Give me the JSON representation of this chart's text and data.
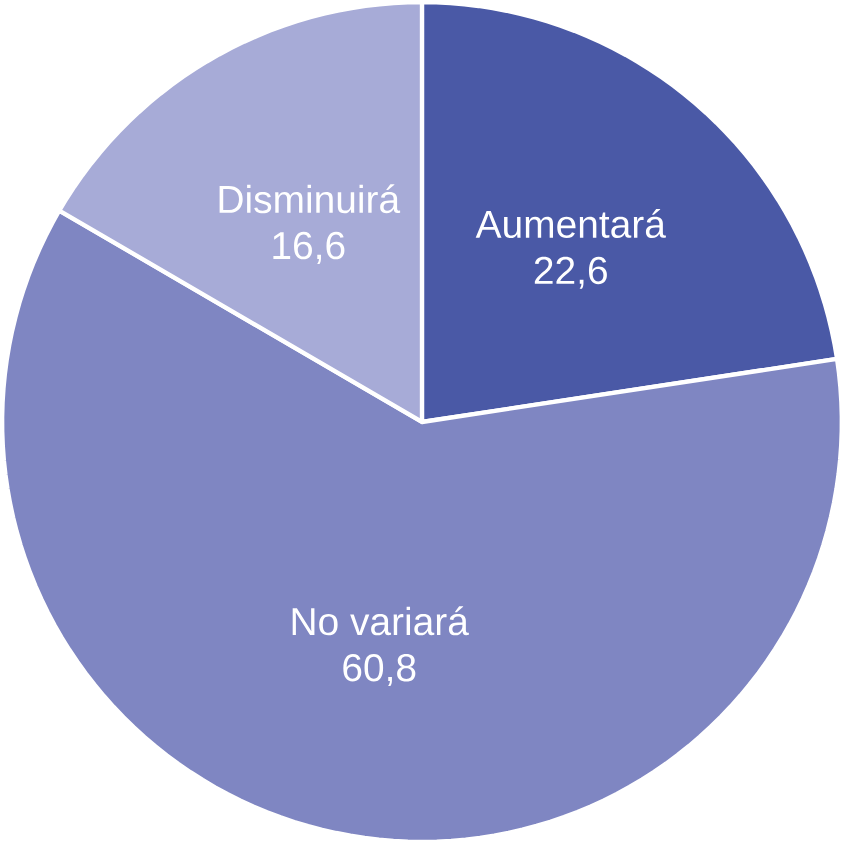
{
  "chart_data": {
    "type": "pie",
    "categories": [
      "Aumentará",
      "No variará",
      "Disminuirá"
    ],
    "values": [
      22.6,
      60.8,
      16.6
    ],
    "value_labels": [
      "22,6",
      "60,8",
      "16,6"
    ],
    "colors": [
      "#4a59a6",
      "#7f86c2",
      "#a7abd7"
    ]
  }
}
